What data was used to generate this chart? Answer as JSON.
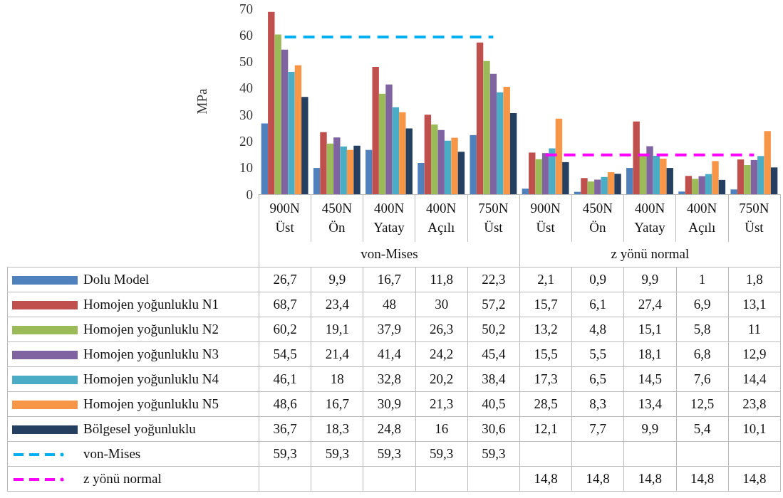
{
  "chart_data": {
    "type": "bar",
    "ylabel": "MPa",
    "categories": [
      "900N Üst",
      "450N Ön",
      "400N Yatay",
      "400N Açılı",
      "750N Üst",
      "900N Üst",
      "450N Ön",
      "400N Yatay",
      "400N Açılı",
      "750N Üst"
    ],
    "ylim": [
      0,
      70
    ],
    "yticks": [
      0,
      10,
      20,
      30,
      40,
      50,
      60,
      70
    ],
    "legend": "bottom",
    "annotations": [
      "von-Mises",
      "z yönü normal"
    ],
    "series": [
      {
        "name": "Dolu Model",
        "color": "#4f81bd",
        "values": [
          26.7,
          9.9,
          16.7,
          11.8,
          22.3,
          2.1,
          0.9,
          9.9,
          1,
          1.8
        ],
        "value_labels": [
          "26,7",
          "9,9",
          "16,7",
          "11,8",
          "22,3",
          "2,1",
          "0,9",
          "9,9",
          "1",
          "1,8"
        ]
      },
      {
        "name": "Homojen yoğunluklu N1",
        "color": "#c0504d",
        "values": [
          68.7,
          23.4,
          48,
          30,
          57.2,
          15.7,
          6.1,
          27.4,
          6.9,
          13.1
        ],
        "value_labels": [
          "68,7",
          "23,4",
          "48",
          "30",
          "57,2",
          "15,7",
          "6,1",
          "27,4",
          "6,9",
          "13,1"
        ]
      },
      {
        "name": "Homojen yoğunluklu N2",
        "color": "#9bbb59",
        "values": [
          60.2,
          19.1,
          37.9,
          26.3,
          50.2,
          13.2,
          4.8,
          15.1,
          5.8,
          11
        ],
        "value_labels": [
          "60,2",
          "19,1",
          "37,9",
          "26,3",
          "50,2",
          "13,2",
          "4,8",
          "15,1",
          "5,8",
          "11"
        ]
      },
      {
        "name": "Homojen yoğunluklu N3",
        "color": "#8064a2",
        "values": [
          54.5,
          21.4,
          41.4,
          24.2,
          45.4,
          15.5,
          5.5,
          18.1,
          6.8,
          12.9
        ],
        "value_labels": [
          "54,5",
          "21,4",
          "41,4",
          "24,2",
          "45,4",
          "15,5",
          "5,5",
          "18,1",
          "6,8",
          "12,9"
        ]
      },
      {
        "name": "Homojen yoğunluklu N4",
        "color": "#4bacc6",
        "values": [
          46.1,
          18,
          32.8,
          20.2,
          38.4,
          17.3,
          6.5,
          14.5,
          7.6,
          14.4
        ],
        "value_labels": [
          "46,1",
          "18",
          "32,8",
          "20,2",
          "38,4",
          "17,3",
          "6,5",
          "14,5",
          "7,6",
          "14,4"
        ]
      },
      {
        "name": "Homojen yoğunluklu N5",
        "color": "#f79646",
        "values": [
          48.6,
          16.7,
          30.9,
          21.3,
          40.5,
          28.5,
          8.3,
          13.4,
          12.5,
          23.8
        ],
        "value_labels": [
          "48,6",
          "16,7",
          "30,9",
          "21,3",
          "40,5",
          "28,5",
          "8,3",
          "13,4",
          "12,5",
          "23,8"
        ]
      },
      {
        "name": "Bölgesel yoğunluklu",
        "color": "#243f60",
        "values": [
          36.7,
          18.3,
          24.8,
          16,
          30.6,
          12.1,
          7.7,
          9.9,
          5.4,
          10.1
        ],
        "value_labels": [
          "36,7",
          "18,3",
          "24,8",
          "16",
          "30,6",
          "12,1",
          "7,7",
          "9,9",
          "5,4",
          "10,1"
        ]
      },
      {
        "name": "von-Mises",
        "type": "line",
        "line_style": "dashed",
        "marker": "none",
        "color": "#00b0f0",
        "values": [
          59.3,
          59.3,
          59.3,
          59.3,
          59.3,
          null,
          null,
          null,
          null,
          null
        ],
        "value_labels": [
          "59,3",
          "59,3",
          "59,3",
          "59,3",
          "59,3",
          null,
          null,
          null,
          null,
          null
        ]
      },
      {
        "name": "z yönü normal",
        "type": "line",
        "line_style": "dashed",
        "marker": "none",
        "color": "#ff00ff",
        "values": [
          null,
          null,
          null,
          null,
          null,
          14.8,
          14.8,
          14.8,
          14.8,
          14.8
        ],
        "value_labels": [
          null,
          null,
          null,
          null,
          null,
          "14,8",
          "14,8",
          "14,8",
          "14,8",
          "14,8"
        ]
      }
    ]
  }
}
